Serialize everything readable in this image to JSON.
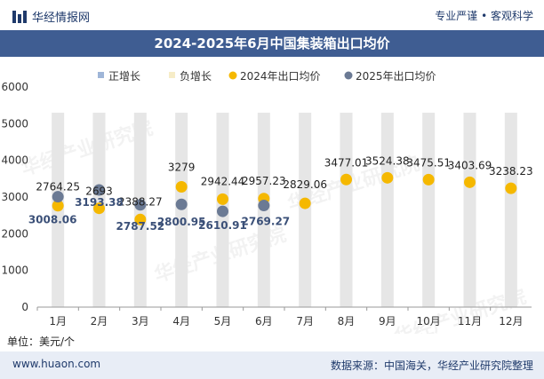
{
  "header": {
    "brand": "华经情报网",
    "slogan": "专业严谨 • 客观科学"
  },
  "unit_label": "单位：美元/个",
  "footer": {
    "site": "www.huaon.com",
    "source": "数据来源：中国海关，华经产业研究院整理"
  },
  "watermark": "华经产业研究院",
  "colors": {
    "title_bar": "#3f5d92",
    "series_2024": "#f5b800",
    "series_2025": "#6b7a94",
    "bar_bg": "#e6e6e6"
  },
  "chart_data": {
    "type": "scatter",
    "title": "2024-2025年6月中国集装箱出口均价",
    "categories": [
      "1月",
      "2月",
      "3月",
      "4月",
      "5月",
      "6月",
      "7月",
      "8月",
      "9月",
      "10月",
      "11月",
      "12月"
    ],
    "ylim": [
      0,
      6000
    ],
    "yticks": [
      0,
      1000,
      2000,
      3000,
      4000,
      5000,
      6000
    ],
    "legend": [
      "正增长",
      "负增长",
      "2024年出口均价",
      "2025年出口均价"
    ],
    "legend_position": "top",
    "grid": false,
    "series": [
      {
        "name": "2024年出口均价",
        "values": [
          2764.25,
          2693,
          2388.27,
          3279,
          2942.44,
          2957.23,
          2829.06,
          3477.01,
          3524.38,
          3475.51,
          3403.69,
          3238.23
        ]
      },
      {
        "name": "2025年出口均价",
        "values": [
          3008.06,
          3193.38,
          2787.52,
          2800.95,
          2610.91,
          2769.27,
          null,
          null,
          null,
          null,
          null,
          null
        ]
      }
    ],
    "labels_2024": [
      "2764.25",
      "2693",
      "2388.27",
      "3279",
      "2942.44",
      "2957.23",
      "2829.06",
      "3477.01",
      "3524.38",
      "3475.51",
      "3403.69",
      "3238.23"
    ],
    "labels_2025": [
      "3008.06",
      "3193.38",
      "2787.52",
      "2800.95",
      "2610.91",
      "2769.27"
    ]
  }
}
